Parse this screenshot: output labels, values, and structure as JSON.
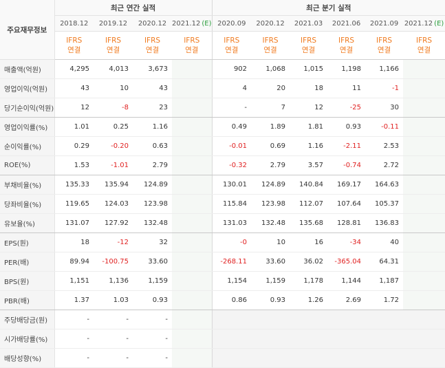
{
  "corner_label": "주요재무정보",
  "annual_header": "최근 연간 실적",
  "quarterly_header": "최근 분기 실적",
  "ifrs_label": "IFRS",
  "consolidated_label": "연결",
  "annual_columns": [
    {
      "date": "2018.12",
      "estimate": ""
    },
    {
      "date": "2019.12",
      "estimate": ""
    },
    {
      "date": "2020.12",
      "estimate": ""
    },
    {
      "date": "2021.12",
      "estimate": "(E)"
    }
  ],
  "quarter_columns": [
    {
      "date": "2020.09",
      "estimate": ""
    },
    {
      "date": "2020.12",
      "estimate": ""
    },
    {
      "date": "2021.03",
      "estimate": ""
    },
    {
      "date": "2021.06",
      "estimate": ""
    },
    {
      "date": "2021.09",
      "estimate": ""
    },
    {
      "date": "2021.12",
      "estimate": "(E)"
    }
  ],
  "rows": [
    {
      "label": "매출액(억원)",
      "annual": [
        "4,295",
        "4,013",
        "3,673",
        ""
      ],
      "quarter": [
        "902",
        "1,068",
        "1,015",
        "1,198",
        "1,166",
        ""
      ]
    },
    {
      "label": "영업이익(억원)",
      "annual": [
        "43",
        "10",
        "43",
        ""
      ],
      "quarter": [
        "4",
        "20",
        "18",
        "11",
        "-1",
        ""
      ]
    },
    {
      "label": "당기순이익(억원)",
      "annual": [
        "12",
        "-8",
        "23",
        ""
      ],
      "quarter": [
        "-",
        "7",
        "12",
        "-25",
        "30",
        ""
      ]
    },
    {
      "label": "영업이익률(%)",
      "annual": [
        "1.01",
        "0.25",
        "1.16",
        ""
      ],
      "quarter": [
        "0.49",
        "1.89",
        "1.81",
        "0.93",
        "-0.11",
        ""
      ]
    },
    {
      "label": "순이익률(%)",
      "annual": [
        "0.29",
        "-0.20",
        "0.63",
        ""
      ],
      "quarter": [
        "-0.01",
        "0.69",
        "1.16",
        "-2.11",
        "2.53",
        ""
      ]
    },
    {
      "label": "ROE(%)",
      "annual": [
        "1.53",
        "-1.01",
        "2.79",
        ""
      ],
      "quarter": [
        "-0.32",
        "2.79",
        "3.57",
        "-0.74",
        "2.72",
        ""
      ]
    },
    {
      "label": "부채비율(%)",
      "annual": [
        "135.33",
        "135.94",
        "124.89",
        ""
      ],
      "quarter": [
        "130.01",
        "124.89",
        "140.84",
        "169.17",
        "164.63",
        ""
      ]
    },
    {
      "label": "당좌비율(%)",
      "annual": [
        "119.65",
        "124.03",
        "123.98",
        ""
      ],
      "quarter": [
        "115.84",
        "123.98",
        "112.07",
        "107.64",
        "105.37",
        ""
      ]
    },
    {
      "label": "유보율(%)",
      "annual": [
        "131.07",
        "127.92",
        "132.48",
        ""
      ],
      "quarter": [
        "131.03",
        "132.48",
        "135.68",
        "128.81",
        "136.83",
        ""
      ]
    },
    {
      "label": "EPS(원)",
      "annual": [
        "18",
        "-12",
        "32",
        ""
      ],
      "quarter": [
        "-0",
        "10",
        "16",
        "-34",
        "40",
        ""
      ]
    },
    {
      "label": "PER(배)",
      "annual": [
        "89.94",
        "-100.75",
        "33.60",
        ""
      ],
      "quarter": [
        "-268.11",
        "33.60",
        "36.02",
        "-365.04",
        "64.31",
        ""
      ]
    },
    {
      "label": "BPS(원)",
      "annual": [
        "1,151",
        "1,136",
        "1,159",
        ""
      ],
      "quarter": [
        "1,154",
        "1,159",
        "1,178",
        "1,144",
        "1,187",
        ""
      ]
    },
    {
      "label": "PBR(배)",
      "annual": [
        "1.37",
        "1.03",
        "0.93",
        ""
      ],
      "quarter": [
        "0.86",
        "0.93",
        "1.26",
        "2.69",
        "1.72",
        ""
      ]
    },
    {
      "label": "주당배당금(원)",
      "annual": [
        "-",
        "-",
        "-",
        ""
      ],
      "quarter": null
    },
    {
      "label": "시가배당률(%)",
      "annual": [
        "-",
        "-",
        "-",
        ""
      ],
      "quarter": null
    },
    {
      "label": "배당성향(%)",
      "annual": [
        "-",
        "-",
        "-",
        ""
      ],
      "quarter": null
    }
  ],
  "colors": {
    "ifrs": "#f07a1e",
    "negative": "#e02020",
    "estimate": "#2a9d3c"
  }
}
